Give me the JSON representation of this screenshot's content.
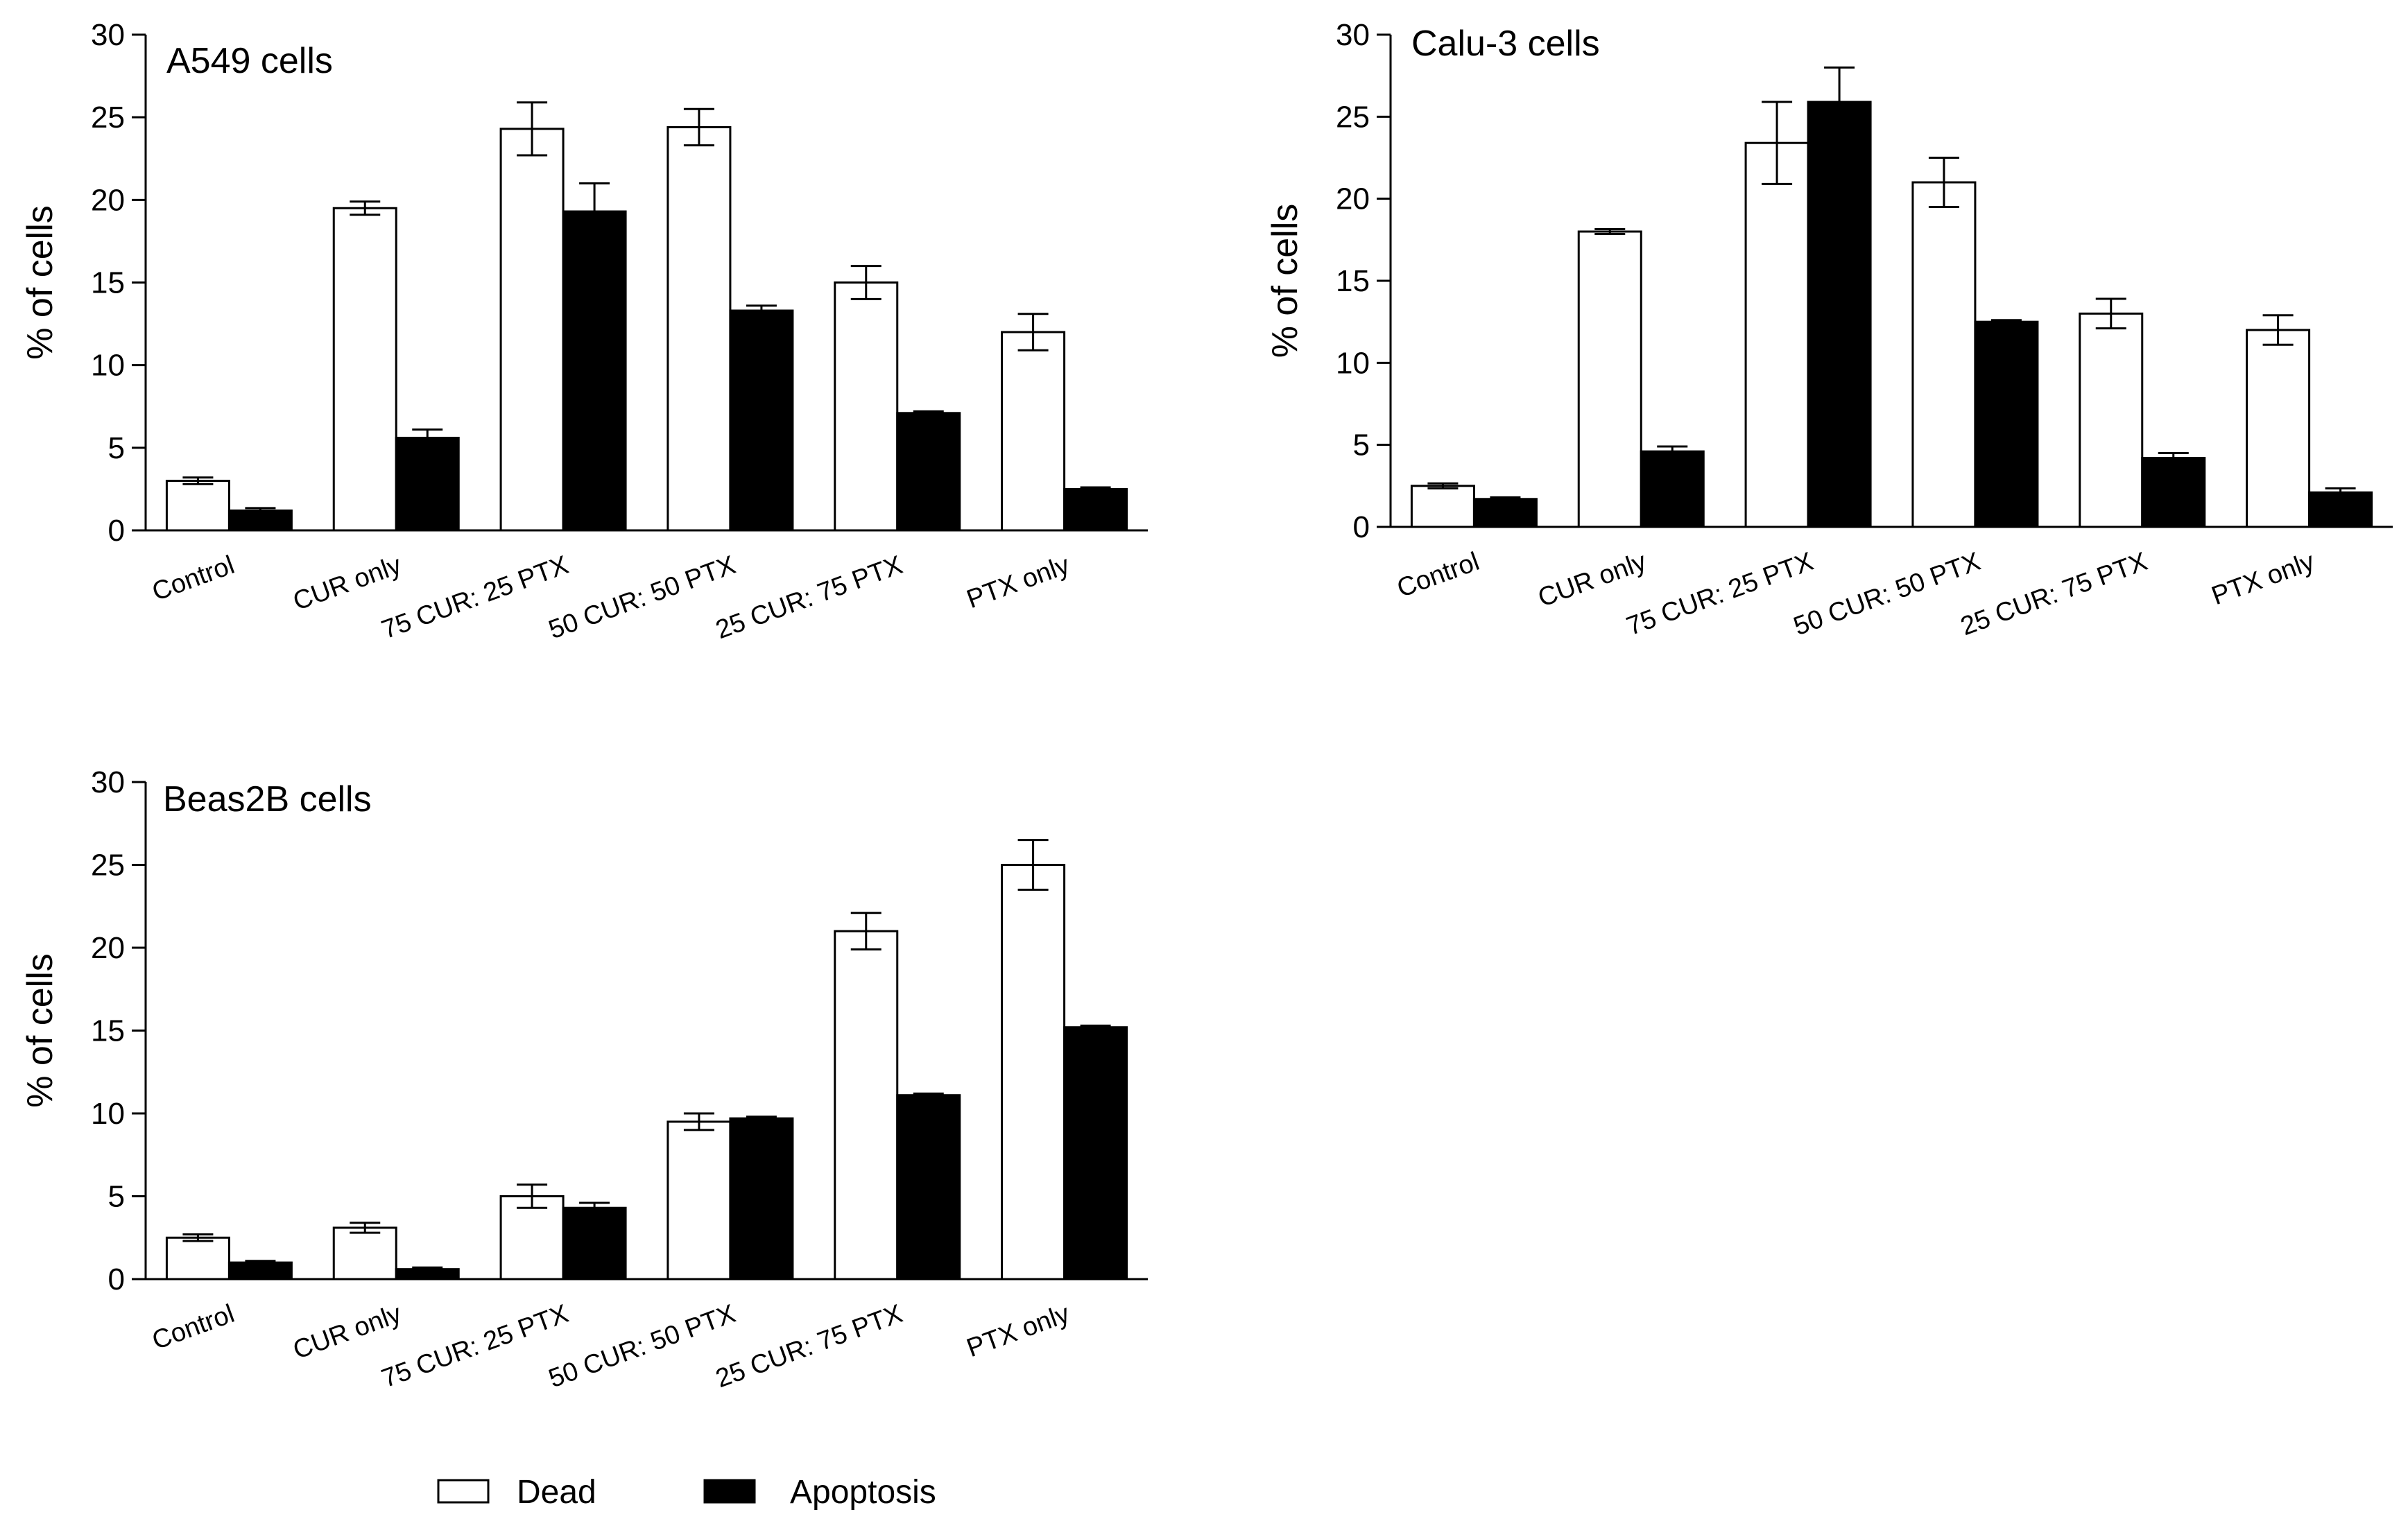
{
  "colors": {
    "dead_fill": "#ffffff",
    "apoptosis_fill": "#000000",
    "stroke": "#000000",
    "background": "#ffffff"
  },
  "legend": {
    "dead_label": "Dead",
    "apoptosis_label": "Apoptosis"
  },
  "chart_data": [
    {
      "type": "bar",
      "title": "A549 cells",
      "xlabel": "",
      "ylabel": "% of cells",
      "ylim": [
        0,
        30
      ],
      "yticks": [
        0,
        5,
        10,
        15,
        20,
        25,
        30
      ],
      "categories": [
        "Control",
        "CUR only",
        "75 CUR: 25 PTX",
        "50 CUR: 50 PTX",
        "25 CUR: 75 PTX",
        "PTX only"
      ],
      "series": [
        {
          "name": "Dead",
          "values": [
            3.0,
            19.5,
            24.3,
            24.4,
            15.0,
            12.0
          ],
          "errors": [
            0.2,
            0.4,
            1.6,
            1.1,
            1.0,
            1.1
          ]
        },
        {
          "name": "Apoptosis",
          "values": [
            1.2,
            5.6,
            19.3,
            13.3,
            7.1,
            2.5
          ],
          "errors": [
            0.15,
            0.5,
            1.7,
            0.3,
            0.1,
            0.1
          ]
        }
      ]
    },
    {
      "type": "bar",
      "title": "Calu-3 cells",
      "xlabel": "",
      "ylabel": "% of cells",
      "ylim": [
        0,
        30
      ],
      "yticks": [
        0,
        5,
        10,
        15,
        20,
        25,
        30
      ],
      "categories": [
        "Control",
        "CUR only",
        "75 CUR: 25 PTX",
        "50 CUR: 50 PTX",
        "25 CUR: 75 PTX",
        "PTX only"
      ],
      "series": [
        {
          "name": "Dead",
          "values": [
            2.5,
            18.0,
            23.4,
            21.0,
            13.0,
            12.0
          ],
          "errors": [
            0.15,
            0.15,
            2.5,
            1.5,
            0.9,
            0.9
          ]
        },
        {
          "name": "Apoptosis",
          "values": [
            1.7,
            4.6,
            25.9,
            12.5,
            4.2,
            2.1
          ],
          "errors": [
            0.1,
            0.3,
            2.1,
            0.1,
            0.3,
            0.25
          ]
        }
      ]
    },
    {
      "type": "bar",
      "title": "Beas2B cells",
      "xlabel": "",
      "ylabel": "% of cells",
      "ylim": [
        0,
        30
      ],
      "yticks": [
        0,
        5,
        10,
        15,
        20,
        25,
        30
      ],
      "categories": [
        "Control",
        "CUR only",
        "75 CUR: 25 PTX",
        "50 CUR: 50 PTX",
        "25 CUR: 75 PTX",
        "PTX only"
      ],
      "series": [
        {
          "name": "Dead",
          "values": [
            2.5,
            3.1,
            5.0,
            9.5,
            21.0,
            25.0
          ],
          "errors": [
            0.2,
            0.3,
            0.7,
            0.5,
            1.1,
            1.5
          ]
        },
        {
          "name": "Apoptosis",
          "values": [
            1.0,
            0.6,
            4.3,
            9.7,
            11.1,
            15.2
          ],
          "errors": [
            0.1,
            0.1,
            0.3,
            0.1,
            0.1,
            0.1
          ]
        }
      ]
    }
  ]
}
